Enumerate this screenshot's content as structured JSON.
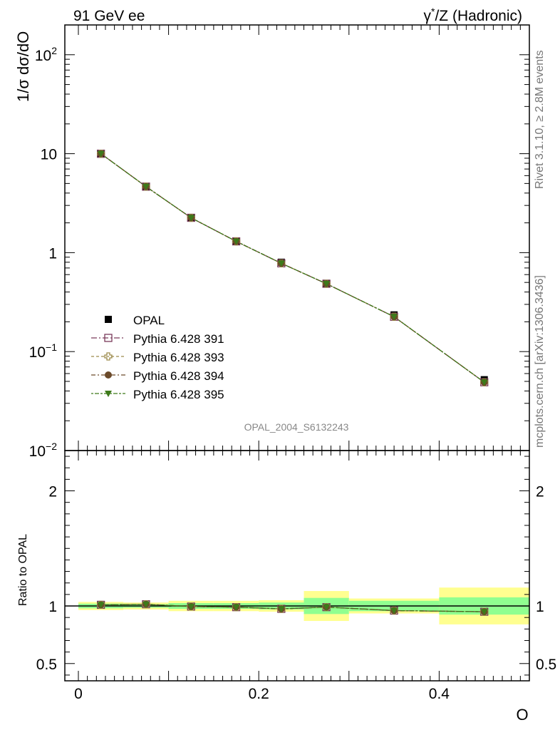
{
  "header": {
    "left": "91 GeV ee",
    "right_base": "γ",
    "right_sup": "*",
    "right_rest": "/Z (Hadronic)"
  },
  "side": {
    "rivet": "Rivet 3.1.10, ≥ 2.8M events",
    "mcplots": "mcplots.cern.ch [arXiv:1306.3436]"
  },
  "analysis_label": "OPAL_2004_S6132243",
  "colors": {
    "opal": "#000000",
    "p391": "#7a3a5a",
    "p393": "#9c8a4a",
    "p394": "#6b4a2a",
    "p395": "#3d7a1a",
    "band_inner": "#90ff90",
    "band_outer": "#ffff90"
  },
  "chart_data": [
    {
      "type": "line",
      "name": "main",
      "ylabel": "1/σ dσ/dO",
      "yscale": "log",
      "ylim": [
        0.01,
        200
      ],
      "xlim": [
        -0.015,
        0.5
      ],
      "ytick_labels": [
        {
          "value": 0.01,
          "base": "10",
          "exp": "−2"
        },
        {
          "value": 0.1,
          "base": "10",
          "exp": "−1"
        },
        {
          "value": 1,
          "base": "1",
          "exp": ""
        },
        {
          "value": 10,
          "base": "10",
          "exp": ""
        },
        {
          "value": 100,
          "base": "10",
          "exp": "2"
        }
      ],
      "x": [
        0.025,
        0.075,
        0.125,
        0.175,
        0.225,
        0.275,
        0.35,
        0.45
      ],
      "series": [
        {
          "name": "OPAL",
          "marker": "square-filled",
          "values": [
            9.9,
            4.6,
            2.25,
            1.3,
            0.8,
            0.49,
            0.235,
            0.052
          ]
        },
        {
          "name": "Pythia 6.428 391",
          "marker": "square-open",
          "values": [
            10.0,
            4.65,
            2.25,
            1.3,
            0.78,
            0.485,
            0.225,
            0.049
          ]
        },
        {
          "name": "Pythia 6.428 393",
          "marker": "cross-open",
          "values": [
            10.0,
            4.65,
            2.25,
            1.3,
            0.78,
            0.485,
            0.225,
            0.049
          ]
        },
        {
          "name": "Pythia 6.428 394",
          "marker": "circle-filled",
          "values": [
            10.0,
            4.65,
            2.25,
            1.3,
            0.78,
            0.485,
            0.225,
            0.049
          ]
        },
        {
          "name": "Pythia 6.428 395",
          "marker": "triangle-down",
          "values": [
            10.0,
            4.65,
            2.25,
            1.3,
            0.78,
            0.485,
            0.225,
            0.049
          ]
        }
      ]
    },
    {
      "type": "line",
      "name": "ratio",
      "ylabel": "Ratio to OPAL",
      "xlabel": "O",
      "ylim": [
        0.35,
        2.35
      ],
      "xlim": [
        -0.015,
        0.5
      ],
      "yticks": [
        0.5,
        1,
        2
      ],
      "ytick_labels": [
        "0.5",
        "1",
        "2"
      ],
      "xticks": [
        0,
        0.2,
        0.4
      ],
      "xtick_labels": [
        "0",
        "0.2",
        "0.4"
      ],
      "bins": [
        [
          0,
          0.05
        ],
        [
          0.05,
          0.1
        ],
        [
          0.1,
          0.15
        ],
        [
          0.15,
          0.2
        ],
        [
          0.2,
          0.25
        ],
        [
          0.25,
          0.3
        ],
        [
          0.3,
          0.4
        ],
        [
          0.4,
          0.5
        ]
      ],
      "band_inner": [
        0.02,
        0.015,
        0.025,
        0.025,
        0.03,
        0.07,
        0.045,
        0.075
      ],
      "band_outer": [
        0.035,
        0.03,
        0.045,
        0.045,
        0.05,
        0.13,
        0.065,
        0.16
      ],
      "x": [
        0.025,
        0.075,
        0.125,
        0.175,
        0.225,
        0.275,
        0.35,
        0.45
      ],
      "series": [
        {
          "name": "Pythia 6.428 391",
          "values": [
            1.01,
            1.015,
            0.995,
            0.99,
            0.975,
            0.99,
            0.96,
            0.95
          ]
        },
        {
          "name": "Pythia 6.428 393",
          "values": [
            1.01,
            1.015,
            0.995,
            0.99,
            0.975,
            0.99,
            0.96,
            0.95
          ]
        },
        {
          "name": "Pythia 6.428 394",
          "values": [
            1.01,
            1.015,
            0.995,
            0.99,
            0.975,
            0.99,
            0.96,
            0.95
          ]
        },
        {
          "name": "Pythia 6.428 395",
          "values": [
            1.01,
            1.015,
            0.995,
            0.99,
            0.975,
            0.99,
            0.96,
            0.95
          ]
        }
      ]
    }
  ]
}
